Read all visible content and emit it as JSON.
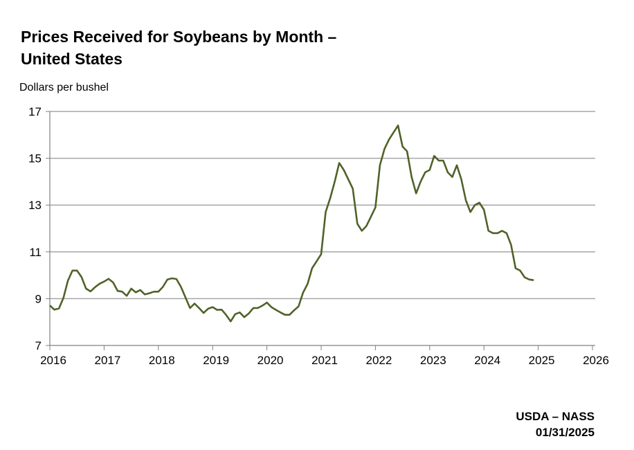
{
  "chart_data": {
    "type": "line",
    "title": "Prices Received for Soybeans by Month – United States",
    "title_lines": [
      "Prices Received for Soybeans by Month –",
      "United States"
    ],
    "ylabel": "Dollars per bushel",
    "xlabel": "",
    "ylim": [
      7,
      17
    ],
    "yticks": [
      7,
      9,
      11,
      13,
      15,
      17
    ],
    "xlim": [
      2016,
      2026
    ],
    "xticks": [
      2016,
      2017,
      2018,
      2019,
      2020,
      2021,
      2022,
      2023,
      2024,
      2025,
      2026
    ],
    "grid": "horizontal",
    "line_color": "#4f6228",
    "grid_color": "#a6a6a6",
    "start": "2016-01",
    "frequency": "monthly",
    "series": [
      {
        "values": [
          8.71,
          8.53,
          8.58,
          9.03,
          9.77,
          10.2,
          10.2,
          9.93,
          9.43,
          9.31,
          9.49,
          9.64,
          9.73,
          9.85,
          9.69,
          9.33,
          9.3,
          9.12,
          9.43,
          9.27,
          9.37,
          9.18,
          9.23,
          9.3,
          9.3,
          9.5,
          9.82,
          9.87,
          9.84,
          9.5,
          9.05,
          8.6,
          8.79,
          8.6,
          8.39,
          8.57,
          8.64,
          8.52,
          8.53,
          8.3,
          8.03,
          8.34,
          8.41,
          8.21,
          8.37,
          8.6,
          8.6,
          8.7,
          8.83,
          8.64,
          8.52,
          8.41,
          8.31,
          8.31,
          8.5,
          8.67,
          9.26,
          9.63,
          10.3,
          10.6,
          10.9,
          12.7,
          13.3,
          14.0,
          14.8,
          14.5,
          14.1,
          13.7,
          12.2,
          11.9,
          12.1,
          12.5,
          12.9,
          14.7,
          15.4,
          15.8,
          16.1,
          16.4,
          15.5,
          15.3,
          14.2,
          13.5,
          14.0,
          14.4,
          14.5,
          15.1,
          14.9,
          14.9,
          14.4,
          14.2,
          14.7,
          14.1,
          13.2,
          12.7,
          13.0,
          13.1,
          12.8,
          11.9,
          11.8,
          11.8,
          11.9,
          11.8,
          11.3,
          10.3,
          10.2,
          9.91,
          9.82,
          9.79
        ]
      }
    ]
  },
  "source": {
    "agency": "USDA – NASS",
    "date": "01/31/2025"
  }
}
